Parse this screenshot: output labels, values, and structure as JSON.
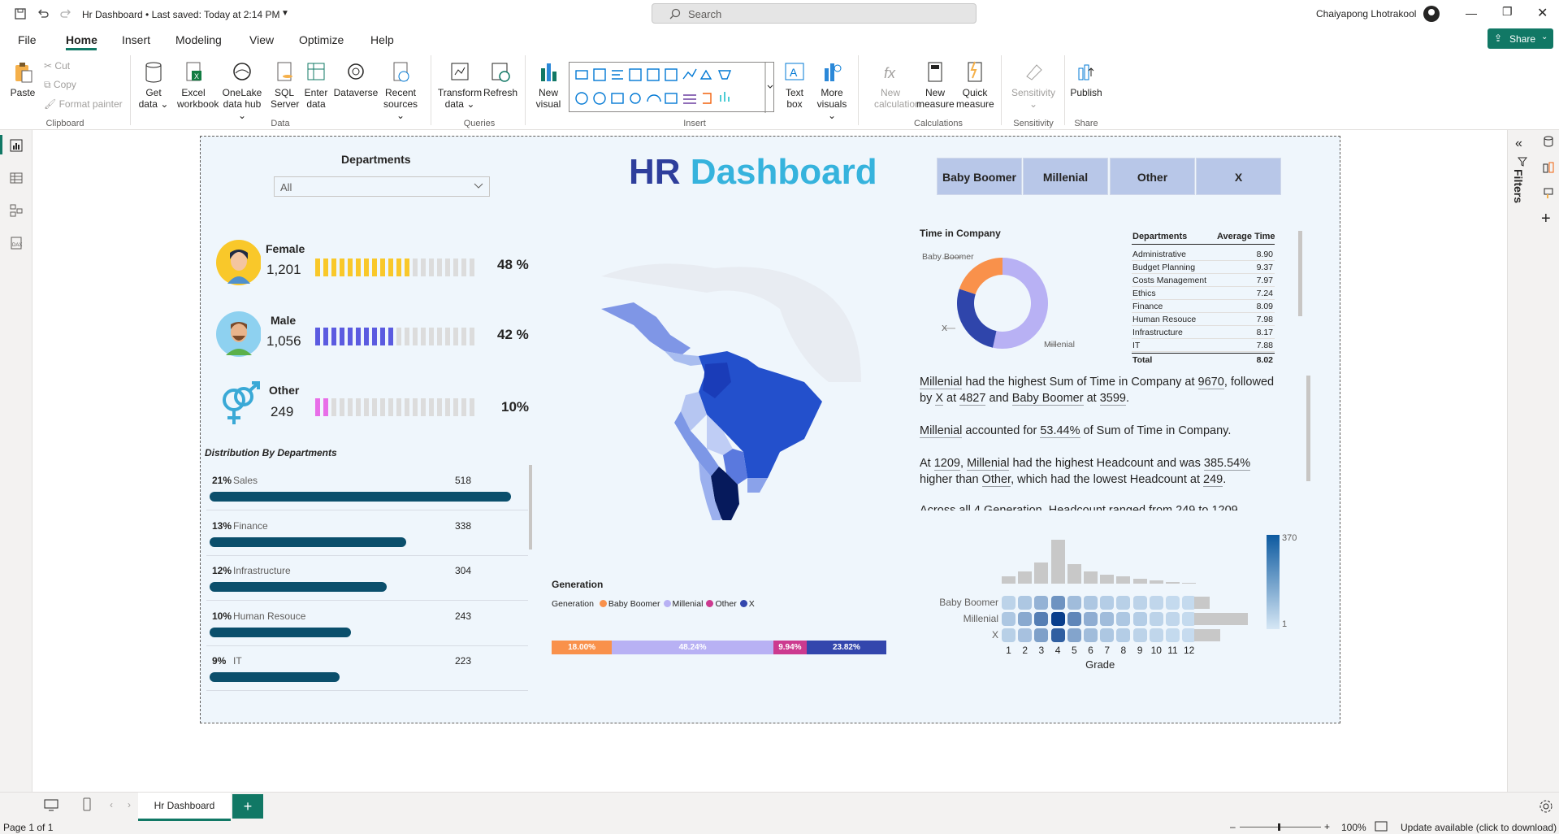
{
  "titlebar": {
    "title": "Hr Dashboard • Last saved: Today at 2:14 PM",
    "search_placeholder": "Search",
    "user": "Chaiyapong Lhotrakool"
  },
  "menu": {
    "items": [
      "File",
      "Home",
      "Insert",
      "Modeling",
      "View",
      "Optimize",
      "Help"
    ],
    "share": "Share"
  },
  "ribbon": {
    "clipboard": {
      "paste": "Paste",
      "cut": "Cut",
      "copy": "Copy",
      "format_painter": "Format painter",
      "group": "Clipboard"
    },
    "data": {
      "get_data": "Get data",
      "excel": "Excel workbook",
      "onelake": "OneLake data hub",
      "sql": "SQL Server",
      "enter": "Enter data",
      "dataverse": "Dataverse",
      "recent": "Recent sources",
      "group": "Data"
    },
    "queries": {
      "transform": "Transform data",
      "refresh": "Refresh",
      "group": "Queries"
    },
    "insert": {
      "new_visual": "New visual",
      "text_box": "Text box",
      "more_visuals": "More visuals",
      "group": "Insert"
    },
    "calculations": {
      "new_calc": "New calculation",
      "new_measure": "New measure",
      "quick_measure": "Quick measure",
      "group": "Calculations"
    },
    "sensitivity": {
      "label": "Sensitivity",
      "group": "Sensitivity"
    },
    "share": {
      "publish": "Publish",
      "group": "Share"
    }
  },
  "right_panel": {
    "filters": "Filters"
  },
  "dashboard": {
    "title_part1": "HR",
    "title_part2": "Dashboard",
    "departments_slicer": {
      "label": "Departments",
      "value": "All"
    },
    "generation_buttons": [
      "Baby Boomer",
      "Millenial",
      "Other",
      "X"
    ],
    "gender": [
      {
        "label": "Female",
        "count": "1,201",
        "pct": "48 %",
        "filled": 12,
        "color": "#f9c82a"
      },
      {
        "label": "Male",
        "count": "1,056",
        "pct": "42 %",
        "filled": 10,
        "color": "#5b5be0"
      },
      {
        "label": "Other",
        "count": "249",
        "pct": "10%",
        "filled": 2,
        "color": "#e86ee8"
      }
    ],
    "dist_title": "Distribution By Departments",
    "distribution": [
      {
        "pct": "21%",
        "name": "Sales",
        "count": "518",
        "value": 518
      },
      {
        "pct": "13%",
        "name": "Finance",
        "count": "338",
        "value": 338
      },
      {
        "pct": "12%",
        "name": "Infrastructure",
        "count": "304",
        "value": 304
      },
      {
        "pct": "10%",
        "name": "Human Resouce",
        "count": "243",
        "value": 243
      },
      {
        "pct": "9%",
        "name": "IT",
        "count": "223",
        "value": 223
      }
    ],
    "time_in_company": {
      "title": "Time in Company",
      "labels": [
        "Baby Boomer",
        "X",
        "Millenial"
      ]
    },
    "avg_table": {
      "headers": [
        "Departments",
        "Average Time"
      ],
      "rows": [
        [
          "Administrative",
          "8.90"
        ],
        [
          "Budget Planning",
          "9.37"
        ],
        [
          "Costs Management",
          "7.97"
        ],
        [
          "Ethics",
          "7.24"
        ],
        [
          "Finance",
          "8.09"
        ],
        [
          "Human Resouce",
          "7.98"
        ],
        [
          "Infrastructure",
          "8.17"
        ],
        [
          "IT",
          "7.88"
        ]
      ],
      "total": [
        "Total",
        "8.02"
      ]
    },
    "insights": {
      "p1": [
        "Millenial",
        " had the highest Sum of Time in Company at ",
        "9670",
        ", followed by ",
        "X",
        " at ",
        "4827",
        " and ",
        "Baby Boomer",
        " at ",
        "3599",
        "."
      ],
      "p2": [
        "Millenial",
        " accounted for ",
        "53.44%",
        " of Sum of Time in Company."
      ],
      "p3": [
        "At ",
        "1209",
        ", ",
        "Millenial",
        " had the highest Headcount and was ",
        "385.54%",
        " higher than ",
        "Other",
        ", which had the lowest Headcount at ",
        "249",
        "."
      ],
      "p4": "Across all 4 Generation, Headcount ranged from 249 to 1209"
    },
    "generation": {
      "title": "Generation",
      "legend_label": "Generation",
      "legend": [
        {
          "name": "Baby Boomer",
          "color": "#f9914b"
        },
        {
          "name": "Millenial",
          "color": "#b8b1f4"
        },
        {
          "name": "Other",
          "color": "#cc3a8f"
        },
        {
          "name": "X",
          "color": "#3346ad"
        }
      ]
    },
    "heatmap": {
      "rows": [
        "Baby Boomer",
        "Millenial",
        "X"
      ],
      "xlabel": "Grade",
      "max_label": "370",
      "min_label": "1",
      "grades": [
        "1",
        "2",
        "3",
        "4",
        "5",
        "6",
        "7",
        "8",
        "9",
        "10",
        "11",
        "12"
      ]
    }
  },
  "chart_data": [
    {
      "type": "pie",
      "title": "Time in Company",
      "categories": [
        "Millenial",
        "X",
        "Baby Boomer"
      ],
      "values": [
        9670,
        4827,
        3599
      ]
    },
    {
      "type": "bar",
      "title": "Generation",
      "orientation": "stacked-horizontal-100",
      "categories": [
        "Baby Boomer",
        "Millenial",
        "Other",
        "X"
      ],
      "values": [
        18.0,
        48.24,
        9.94,
        23.82
      ],
      "data_labels": [
        "18.00%",
        "48.24%",
        "9.94%",
        "23.82%"
      ]
    },
    {
      "type": "bar",
      "title": "Distribution By Departments",
      "categories": [
        "Sales",
        "Finance",
        "Infrastructure",
        "Human Resouce",
        "IT"
      ],
      "values": [
        518,
        338,
        304,
        243,
        223
      ]
    },
    {
      "type": "heatmap",
      "title": "Grade",
      "x": [
        "1",
        "2",
        "3",
        "4",
        "5",
        "6",
        "7",
        "8",
        "9",
        "10",
        "11",
        "12"
      ],
      "y": [
        "Baby Boomer",
        "Millenial",
        "X"
      ],
      "values": [
        [
          20,
          40,
          80,
          150,
          60,
          40,
          30,
          25,
          20,
          15,
          10,
          10
        ],
        [
          40,
          100,
          200,
          370,
          180,
          90,
          60,
          40,
          30,
          20,
          15,
          10
        ],
        [
          25,
          50,
          120,
          280,
          110,
          60,
          40,
          30,
          20,
          15,
          10,
          8
        ]
      ],
      "range": [
        1,
        370
      ],
      "top_hist": [
        8,
        14,
        24,
        50,
        22,
        14,
        10,
        8,
        6,
        4,
        2,
        1
      ],
      "side_hist": [
        18,
        62,
        30
      ]
    }
  ],
  "tabs": {
    "page": "Hr Dashboard"
  },
  "status": {
    "page": "Page 1 of 1",
    "zoom": "100%",
    "update": "Update available (click to download)"
  }
}
